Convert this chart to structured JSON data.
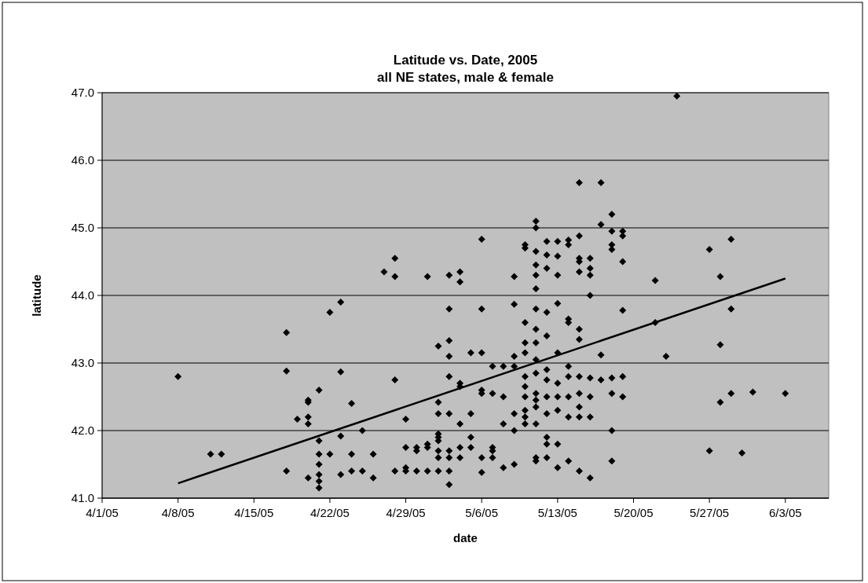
{
  "chart_data": {
    "type": "scatter",
    "title": "Latitude vs. Date, 2005",
    "subtitle": "all NE states, male & female",
    "xlabel": "date",
    "ylabel": "latitude",
    "xlim": [
      "2005-04-01",
      "2005-06-07"
    ],
    "xticks": [
      {
        "value": "2005-04-01",
        "label": "4/1/05"
      },
      {
        "value": "2005-04-08",
        "label": "4/8/05"
      },
      {
        "value": "2005-04-15",
        "label": "4/15/05"
      },
      {
        "value": "2005-04-22",
        "label": "4/22/05"
      },
      {
        "value": "2005-04-29",
        "label": "4/29/05"
      },
      {
        "value": "2005-05-06",
        "label": "5/6/05"
      },
      {
        "value": "2005-05-13",
        "label": "5/13/05"
      },
      {
        "value": "2005-05-20",
        "label": "5/20/05"
      },
      {
        "value": "2005-05-27",
        "label": "5/27/05"
      },
      {
        "value": "2005-06-03",
        "label": "6/3/05"
      }
    ],
    "ylim": [
      41,
      47
    ],
    "yticks": [
      {
        "value": 41,
        "label": "41.0"
      },
      {
        "value": 42,
        "label": "42.0"
      },
      {
        "value": 43,
        "label": "43.0"
      },
      {
        "value": 44,
        "label": "44.0"
      },
      {
        "value": 45,
        "label": "45.0"
      },
      {
        "value": 46,
        "label": "46.0"
      },
      {
        "value": 47,
        "label": "47.0"
      }
    ],
    "grid": "y",
    "marker": "diamond",
    "series": [
      {
        "color": "#000000",
        "x": [
          "2005-04-08",
          "2005-04-11",
          "2005-04-12",
          "2005-04-18",
          "2005-04-18",
          "2005-04-18",
          "2005-04-19",
          "2005-04-20",
          "2005-04-20",
          "2005-04-20",
          "2005-04-20",
          "2005-04-20",
          "2005-04-21",
          "2005-04-21",
          "2005-04-21",
          "2005-04-21",
          "2005-04-21",
          "2005-04-21",
          "2005-04-21",
          "2005-04-22",
          "2005-04-22",
          "2005-04-23",
          "2005-04-23",
          "2005-04-23",
          "2005-04-23",
          "2005-04-24",
          "2005-04-24",
          "2005-04-24",
          "2005-04-25",
          "2005-04-25",
          "2005-04-26",
          "2005-04-26",
          "2005-04-27",
          "2005-04-28",
          "2005-04-28",
          "2005-04-28",
          "2005-04-28",
          "2005-04-29",
          "2005-04-29",
          "2005-04-29",
          "2005-04-29",
          "2005-04-30",
          "2005-04-30",
          "2005-04-30",
          "2005-05-01",
          "2005-05-01",
          "2005-05-01",
          "2005-05-01",
          "2005-05-02",
          "2005-05-02",
          "2005-05-02",
          "2005-05-02",
          "2005-05-02",
          "2005-05-02",
          "2005-05-02",
          "2005-05-02",
          "2005-05-02",
          "2005-05-03",
          "2005-05-03",
          "2005-05-03",
          "2005-05-03",
          "2005-05-03",
          "2005-05-03",
          "2005-05-03",
          "2005-05-03",
          "2005-05-03",
          "2005-05-03",
          "2005-05-04",
          "2005-05-04",
          "2005-05-04",
          "2005-05-04",
          "2005-05-04",
          "2005-05-04",
          "2005-05-04",
          "2005-05-05",
          "2005-05-05",
          "2005-05-05",
          "2005-05-05",
          "2005-05-06",
          "2005-05-06",
          "2005-05-06",
          "2005-05-06",
          "2005-05-06",
          "2005-05-06",
          "2005-05-06",
          "2005-05-07",
          "2005-05-07",
          "2005-05-07",
          "2005-05-07",
          "2005-05-07",
          "2005-05-08",
          "2005-05-08",
          "2005-05-08",
          "2005-05-08",
          "2005-05-09",
          "2005-05-09",
          "2005-05-09",
          "2005-05-09",
          "2005-05-09",
          "2005-05-09",
          "2005-05-09",
          "2005-05-10",
          "2005-05-10",
          "2005-05-10",
          "2005-05-10",
          "2005-05-10",
          "2005-05-10",
          "2005-05-10",
          "2005-05-10",
          "2005-05-10",
          "2005-05-10",
          "2005-05-10",
          "2005-05-11",
          "2005-05-11",
          "2005-05-11",
          "2005-05-11",
          "2005-05-11",
          "2005-05-11",
          "2005-05-11",
          "2005-05-11",
          "2005-05-11",
          "2005-05-11",
          "2005-05-11",
          "2005-05-11",
          "2005-05-11",
          "2005-05-11",
          "2005-05-11",
          "2005-05-11",
          "2005-05-11",
          "2005-05-12",
          "2005-05-12",
          "2005-05-12",
          "2005-05-12",
          "2005-05-12",
          "2005-05-12",
          "2005-05-12",
          "2005-05-12",
          "2005-05-12",
          "2005-05-12",
          "2005-05-12",
          "2005-05-12",
          "2005-05-13",
          "2005-05-13",
          "2005-05-13",
          "2005-05-13",
          "2005-05-13",
          "2005-05-13",
          "2005-05-13",
          "2005-05-13",
          "2005-05-13",
          "2005-05-13",
          "2005-05-14",
          "2005-05-14",
          "2005-05-14",
          "2005-05-14",
          "2005-05-14",
          "2005-05-14",
          "2005-05-14",
          "2005-05-14",
          "2005-05-14",
          "2005-05-15",
          "2005-05-15",
          "2005-05-15",
          "2005-05-15",
          "2005-05-15",
          "2005-05-15",
          "2005-05-15",
          "2005-05-15",
          "2005-05-15",
          "2005-05-15",
          "2005-05-15",
          "2005-05-15",
          "2005-05-16",
          "2005-05-16",
          "2005-05-16",
          "2005-05-16",
          "2005-05-16",
          "2005-05-16",
          "2005-05-16",
          "2005-05-16",
          "2005-05-17",
          "2005-05-17",
          "2005-05-17",
          "2005-05-17",
          "2005-05-18",
          "2005-05-18",
          "2005-05-18",
          "2005-05-18",
          "2005-05-18",
          "2005-05-18",
          "2005-05-18",
          "2005-05-18",
          "2005-05-19",
          "2005-05-19",
          "2005-05-19",
          "2005-05-19",
          "2005-05-19",
          "2005-05-19",
          "2005-05-22",
          "2005-05-22",
          "2005-05-23",
          "2005-05-24",
          "2005-05-27",
          "2005-05-27",
          "2005-05-28",
          "2005-05-28",
          "2005-05-28",
          "2005-05-29",
          "2005-05-29",
          "2005-05-29",
          "2005-05-30",
          "2005-05-31",
          "2005-06-03"
        ],
        "values": [
          42.8,
          41.65,
          41.65,
          43.45,
          42.88,
          41.4,
          42.17,
          42.45,
          42.42,
          42.2,
          42.1,
          41.3,
          42.6,
          41.85,
          41.65,
          41.5,
          41.35,
          41.25,
          41.15,
          43.75,
          41.65,
          43.9,
          42.87,
          41.92,
          41.35,
          42.4,
          41.65,
          41.4,
          42.0,
          41.4,
          41.65,
          41.3,
          44.35,
          44.55,
          44.28,
          42.75,
          41.4,
          42.17,
          41.75,
          41.45,
          41.4,
          41.75,
          41.7,
          41.4,
          44.28,
          41.8,
          41.75,
          41.4,
          43.25,
          42.42,
          42.25,
          41.95,
          41.9,
          41.85,
          41.7,
          41.6,
          41.4,
          44.3,
          43.8,
          43.33,
          43.1,
          42.8,
          42.25,
          41.7,
          41.6,
          41.4,
          41.2,
          44.35,
          44.2,
          42.7,
          42.65,
          42.1,
          41.75,
          41.6,
          43.15,
          42.25,
          41.9,
          41.75,
          44.83,
          43.8,
          43.15,
          42.6,
          42.55,
          41.6,
          41.38,
          42.95,
          42.55,
          41.75,
          41.7,
          41.6,
          42.95,
          42.5,
          42.1,
          41.45,
          44.28,
          43.87,
          43.1,
          42.95,
          42.25,
          42.0,
          41.5,
          44.75,
          44.7,
          43.6,
          43.3,
          43.15,
          42.8,
          42.65,
          42.5,
          42.3,
          42.2,
          42.1,
          45.1,
          45.0,
          44.65,
          44.45,
          44.3,
          44.1,
          43.8,
          43.5,
          43.3,
          43.05,
          42.85,
          42.55,
          42.45,
          42.35,
          42.1,
          41.6,
          41.55,
          44.8,
          44.6,
          44.4,
          43.75,
          43.4,
          42.9,
          42.75,
          42.5,
          42.25,
          41.9,
          41.8,
          41.6,
          44.8,
          44.58,
          44.3,
          43.88,
          43.15,
          42.7,
          42.5,
          42.3,
          41.8,
          41.45,
          44.82,
          44.75,
          43.65,
          43.6,
          42.95,
          42.8,
          42.5,
          42.2,
          41.55,
          45.67,
          44.88,
          44.55,
          44.5,
          44.35,
          43.5,
          43.35,
          42.8,
          42.55,
          42.35,
          42.2,
          41.4,
          44.55,
          44.4,
          44.3,
          44.0,
          42.78,
          42.5,
          42.2,
          41.3,
          45.67,
          45.05,
          43.12,
          42.75,
          45.2,
          44.95,
          44.75,
          44.68,
          42.78,
          42.55,
          42.0,
          41.55,
          44.95,
          44.88,
          44.5,
          43.78,
          42.8,
          42.5,
          44.22,
          43.6,
          43.1,
          46.95,
          44.68,
          41.7,
          44.28,
          43.27,
          42.42,
          44.83,
          43.8,
          42.55,
          41.67,
          42.57,
          42.55
        ]
      },
      {
        "type": "line",
        "color": "#000000",
        "marker": "none",
        "line_style": "solid",
        "x": [
          "2005-04-08",
          "2005-06-03"
        ],
        "values": [
          41.22,
          44.25
        ]
      }
    ]
  }
}
